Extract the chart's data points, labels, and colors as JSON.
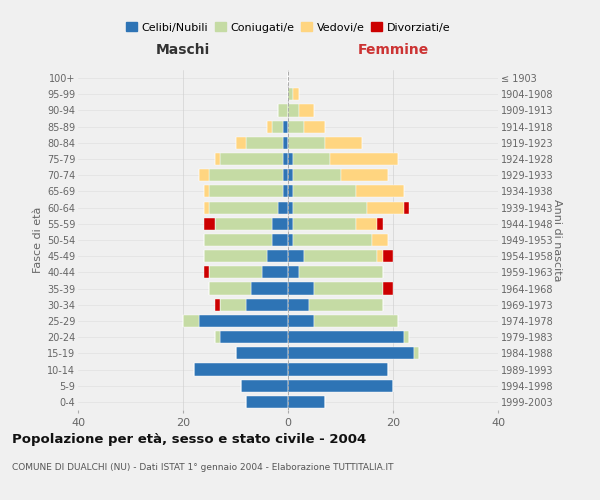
{
  "age_groups": [
    "0-4",
    "5-9",
    "10-14",
    "15-19",
    "20-24",
    "25-29",
    "30-34",
    "35-39",
    "40-44",
    "45-49",
    "50-54",
    "55-59",
    "60-64",
    "65-69",
    "70-74",
    "75-79",
    "80-84",
    "85-89",
    "90-94",
    "95-99",
    "100+"
  ],
  "birth_years": [
    "1999-2003",
    "1994-1998",
    "1989-1993",
    "1984-1988",
    "1979-1983",
    "1974-1978",
    "1969-1973",
    "1964-1968",
    "1959-1963",
    "1954-1958",
    "1949-1953",
    "1944-1948",
    "1939-1943",
    "1934-1938",
    "1929-1933",
    "1924-1928",
    "1919-1923",
    "1914-1918",
    "1909-1913",
    "1904-1908",
    "≤ 1903"
  ],
  "maschi": {
    "celibi": [
      8,
      9,
      18,
      10,
      13,
      17,
      8,
      7,
      5,
      4,
      3,
      3,
      2,
      1,
      1,
      1,
      1,
      1,
      0,
      0,
      0
    ],
    "coniugati": [
      0,
      0,
      0,
      0,
      1,
      3,
      5,
      8,
      10,
      12,
      13,
      11,
      13,
      14,
      14,
      12,
      7,
      2,
      2,
      0,
      0
    ],
    "vedovi": [
      0,
      0,
      0,
      0,
      0,
      0,
      0,
      0,
      0,
      0,
      0,
      0,
      1,
      1,
      2,
      1,
      2,
      1,
      0,
      0,
      0
    ],
    "divorziati": [
      0,
      0,
      0,
      0,
      0,
      0,
      1,
      0,
      1,
      0,
      0,
      2,
      0,
      0,
      0,
      0,
      0,
      0,
      0,
      0,
      0
    ]
  },
  "femmine": {
    "nubili": [
      7,
      20,
      19,
      24,
      22,
      5,
      4,
      5,
      2,
      3,
      1,
      1,
      1,
      1,
      1,
      1,
      0,
      0,
      0,
      0,
      0
    ],
    "coniugate": [
      0,
      0,
      0,
      1,
      1,
      16,
      14,
      13,
      16,
      14,
      15,
      12,
      14,
      12,
      9,
      7,
      7,
      3,
      2,
      1,
      0
    ],
    "vedove": [
      0,
      0,
      0,
      0,
      0,
      0,
      0,
      0,
      0,
      1,
      3,
      4,
      7,
      9,
      9,
      13,
      7,
      4,
      3,
      1,
      0
    ],
    "divorziate": [
      0,
      0,
      0,
      0,
      0,
      0,
      0,
      2,
      0,
      2,
      0,
      1,
      1,
      0,
      0,
      0,
      0,
      0,
      0,
      0,
      0
    ]
  },
  "colors": {
    "celibi": "#2E74B5",
    "coniugati": "#C5DBA4",
    "vedovi": "#FFD580",
    "divorziati": "#CC0000"
  },
  "title": "Popolazione per età, sesso e stato civile - 2004",
  "subtitle": "COMUNE DI DUALCHI (NU) - Dati ISTAT 1° gennaio 2004 - Elaborazione TUTTITALIA.IT",
  "xlabel_left": "Maschi",
  "xlabel_right": "Femmine",
  "ylabel_left": "Fasce di età",
  "ylabel_right": "Anni di nascita",
  "xlim": 40,
  "bg_color": "#f0f0f0",
  "plot_bg": "#f0f0f0"
}
